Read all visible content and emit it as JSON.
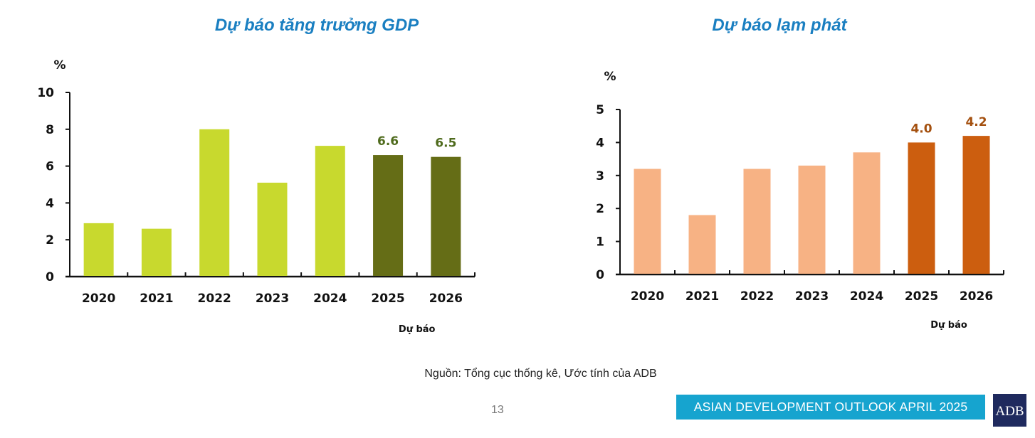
{
  "chart_data": [
    {
      "type": "bar",
      "title": "Dự báo tăng trưởng GDP",
      "ylabel": "%",
      "xlabel": "",
      "forecast_label": "Dự báo",
      "categories": [
        "2020",
        "2021",
        "2022",
        "2023",
        "2024",
        "2025",
        "2026"
      ],
      "values": [
        2.9,
        2.6,
        8.0,
        5.1,
        7.1,
        6.6,
        6.5
      ],
      "data_labels": [
        "",
        "",
        "",
        "",
        "",
        "6.6",
        "6.5"
      ],
      "forecast": [
        false,
        false,
        false,
        false,
        false,
        true,
        true
      ],
      "ylim": [
        0,
        10
      ],
      "yticks": [
        "0",
        "2",
        "4",
        "6",
        "8",
        "10"
      ],
      "colors": {
        "actual": "#c8d92e",
        "forecast": "#656d16",
        "label": "#4f6b1d"
      },
      "grid": false
    },
    {
      "type": "bar",
      "title": "Dự báo lạm phát",
      "ylabel": "%",
      "xlabel": "",
      "forecast_label": "Dự báo",
      "categories": [
        "2020",
        "2021",
        "2022",
        "2023",
        "2024",
        "2025",
        "2026"
      ],
      "values": [
        3.2,
        1.8,
        3.2,
        3.3,
        3.7,
        4.0,
        4.2
      ],
      "data_labels": [
        "",
        "",
        "",
        "",
        "",
        "4.0",
        "4.2"
      ],
      "forecast": [
        false,
        false,
        false,
        false,
        false,
        true,
        true
      ],
      "ylim": [
        0,
        5
      ],
      "yticks": [
        "0",
        "1",
        "2",
        "3",
        "4",
        "5"
      ],
      "colors": {
        "actual": "#f7b284",
        "forecast": "#cc5e0f",
        "label": "#a4500f"
      },
      "grid": false
    }
  ],
  "footer": {
    "source": "Nguồn: Tổng cục thống kê, Ước tính của ADB",
    "page_number": "13",
    "banner": "ASIAN DEVELOPMENT OUTLOOK APRIL 2025",
    "logo": "ADB"
  }
}
